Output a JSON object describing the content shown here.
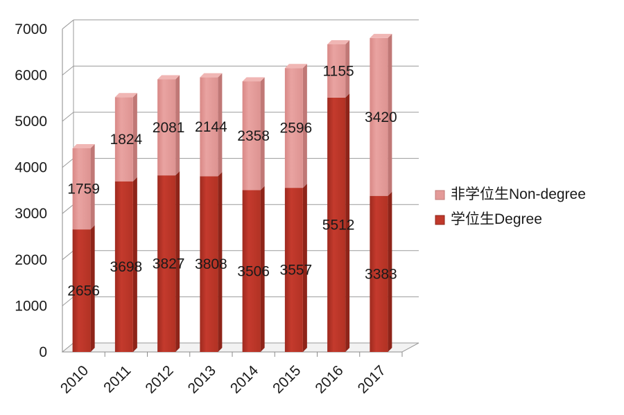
{
  "chart_data": {
    "type": "bar",
    "stacked": true,
    "three_d": true,
    "categories": [
      "2010",
      "2011",
      "2012",
      "2013",
      "2014",
      "2015",
      "2016",
      "2017"
    ],
    "series": [
      {
        "name": "学位生Degree",
        "values": [
          2656,
          3698,
          3827,
          3808,
          3506,
          3557,
          5512,
          3383
        ],
        "color": "#c0392b"
      },
      {
        "name": "非学位生Non-degree",
        "values": [
          1759,
          1824,
          2081,
          2144,
          2358,
          2596,
          1155,
          3420
        ],
        "color": "#e39a98"
      }
    ],
    "yticks": [
      "0",
      "1000",
      "2000",
      "3000",
      "4000",
      "5000",
      "6000",
      "7000"
    ],
    "ylim": [
      0,
      7000
    ],
    "grid": true,
    "legend_position": "right"
  }
}
